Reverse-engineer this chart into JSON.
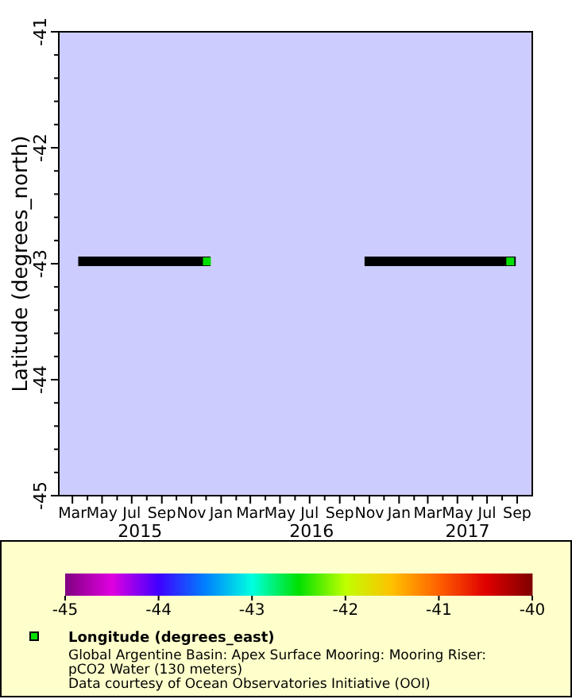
{
  "chart_data": {
    "type": "scatter",
    "ylabel": "Latitude (degrees_north)",
    "clabel": "Longitude (degrees_east)",
    "xlim": [
      "2015-02-01",
      "2017-10-02"
    ],
    "ylim": [
      -45,
      -41
    ],
    "xticks": [
      {
        "value": "2015-03-01",
        "label": "Mar"
      },
      {
        "value": "2015-04-01",
        "label": null
      },
      {
        "value": "2015-05-01",
        "label": "May"
      },
      {
        "value": "2015-06-01",
        "label": null
      },
      {
        "value": "2015-07-01",
        "label": "Jul"
      },
      {
        "value": "2015-08-01",
        "label": null
      },
      {
        "value": "2015-09-01",
        "label": "Sep"
      },
      {
        "value": "2015-10-01",
        "label": null
      },
      {
        "value": "2015-11-01",
        "label": "Nov"
      },
      {
        "value": "2015-12-01",
        "label": null
      },
      {
        "value": "2016-01-01",
        "label": "Jan"
      },
      {
        "value": "2016-02-01",
        "label": null
      },
      {
        "value": "2016-03-01",
        "label": "Mar"
      },
      {
        "value": "2016-04-01",
        "label": null
      },
      {
        "value": "2016-05-01",
        "label": "May"
      },
      {
        "value": "2016-06-01",
        "label": null
      },
      {
        "value": "2016-07-01",
        "label": "Jul"
      },
      {
        "value": "2016-08-01",
        "label": null
      },
      {
        "value": "2016-09-01",
        "label": "Sep"
      },
      {
        "value": "2016-10-01",
        "label": null
      },
      {
        "value": "2016-11-01",
        "label": "Nov"
      },
      {
        "value": "2016-12-01",
        "label": null
      },
      {
        "value": "2017-01-01",
        "label": "Jan"
      },
      {
        "value": "2017-02-01",
        "label": null
      },
      {
        "value": "2017-03-01",
        "label": "Mar"
      },
      {
        "value": "2017-04-01",
        "label": null
      },
      {
        "value": "2017-05-01",
        "label": "May"
      },
      {
        "value": "2017-06-01",
        "label": null
      },
      {
        "value": "2017-07-01",
        "label": "Jul"
      },
      {
        "value": "2017-08-01",
        "label": null
      },
      {
        "value": "2017-09-01",
        "label": "Sep"
      }
    ],
    "x2ticks": [
      {
        "value": "2015-07-18",
        "label": "2015"
      },
      {
        "value": "2016-07-05",
        "label": "2016"
      },
      {
        "value": "2017-05-22",
        "label": "2017"
      }
    ],
    "yticks": [
      -45,
      {
        "value": -44.8,
        "label": null
      },
      {
        "value": -44.6,
        "label": null
      },
      {
        "value": -44.4,
        "label": null
      },
      {
        "value": -44.2,
        "label": null
      },
      -44,
      {
        "value": -43.8,
        "label": null
      },
      {
        "value": -43.6,
        "label": null
      },
      {
        "value": -43.4,
        "label": null
      },
      {
        "value": -43.2,
        "label": null
      },
      -43,
      {
        "value": -42.8,
        "label": null
      },
      {
        "value": -42.6,
        "label": null
      },
      {
        "value": -42.4,
        "label": null
      },
      {
        "value": -42.2,
        "label": null
      },
      -42,
      {
        "value": -41.8,
        "label": null
      },
      {
        "value": -41.6,
        "label": null
      },
      {
        "value": -41.4,
        "label": null
      },
      {
        "value": -41.2,
        "label": null
      },
      -41
    ],
    "clim": [
      -45,
      -40
    ],
    "cticks": [
      -45,
      -44,
      -43,
      -42,
      -41,
      -40
    ],
    "x2lim": [
      "2015-02-01",
      "2017-10-02"
    ],
    "series": [
      {
        "type": "line",
        "color": "#000000",
        "x": [
          "2015-03-13",
          "2015-12-10",
          "2016-06-01",
          "2016-10-22",
          "2017-08-29"
        ],
        "values": [
          -42.98,
          -42.98,
          null,
          -42.98,
          -42.98
        ]
      },
      {
        "marker": "square",
        "x": [
          "2015-12-06",
          "2017-08-21"
        ],
        "values": [
          -42.98,
          -42.98
        ],
        "cvalues": [
          -42.5,
          -42.5
        ]
      }
    ],
    "annotations": [
      "Global Argentine Basin: Apex Surface Mooring: Mooring Riser:",
      "pCO2 Water (130 meters)",
      "Data courtesy of Ocean Observatories Initiative (OOI)"
    ]
  }
}
